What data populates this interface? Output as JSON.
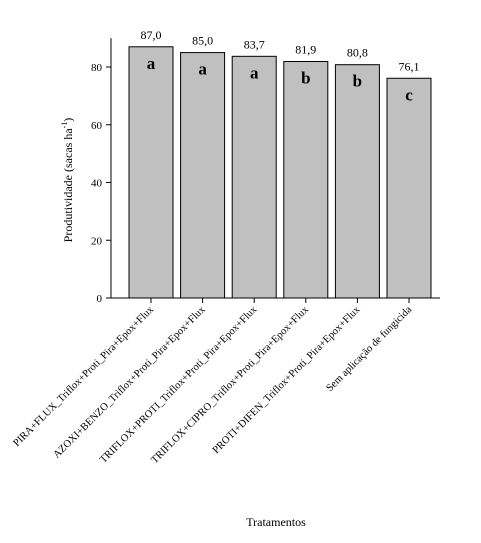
{
  "chart_data": {
    "type": "bar",
    "categories": [
      "PIRA+FLUX_Triflox+Proti_Pira+Epox+Flux",
      "AZOXI+BENZO_Triflox+Proti_Pira+Epox+Flux",
      "TRIFLOX+PROTI_Triflox+Proti_Pira+Epox+Flux",
      "TRIFLOX+CIPRO_Triflox+Proti_Pira+Epox+Flux",
      "PROTI+DIFEN_Triflox+Proti_Pira+Epox+Flux",
      "Sem aplicação de fungicida"
    ],
    "values": [
      87.0,
      85.0,
      83.7,
      81.9,
      80.8,
      76.1
    ],
    "value_labels": [
      "87,0",
      "85,0",
      "83,7",
      "81,9",
      "80,8",
      "76,1"
    ],
    "letters": [
      "a",
      "a",
      "a",
      "b",
      "b",
      "c"
    ],
    "xlabel": "Tratamentos",
    "ylabel": "Produtividade (sacas ha",
    "ylabel_superscript": "-1",
    "ylabel_suffix": ")",
    "ylim": [
      0,
      90
    ],
    "yticks": [
      0,
      20,
      40,
      60,
      80
    ],
    "bar_color": "#c0c0c0",
    "grid": false
  }
}
